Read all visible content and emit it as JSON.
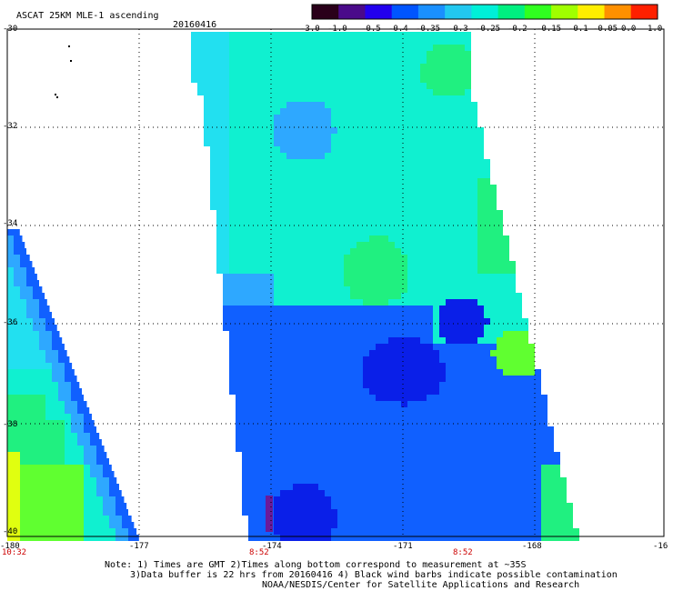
{
  "header": {
    "title": "ASCAT 25KM MLE-1 ascending",
    "date": "20160416"
  },
  "colorbar": {
    "labels": [
      "-3.0",
      "-1.0",
      "-0.5",
      "-0.4",
      "-0.35",
      "-0.3",
      "-0.25",
      "-0.2",
      "-0.15",
      "-0.1",
      "-0.05",
      "0.0",
      "1.0"
    ],
    "colors": [
      "#2a001a",
      "#4a0a8a",
      "#2200ee",
      "#0055ff",
      "#1a90ff",
      "#22c8f0",
      "#00f0d8",
      "#00f080",
      "#30ff20",
      "#a0ff00",
      "#ffee00",
      "#ff9000",
      "#ff2000"
    ]
  },
  "axes": {
    "y_labels": [
      "-30",
      "-32",
      "-34",
      "-36",
      "-38",
      "-40"
    ],
    "x_labels": [
      "-180",
      "-177",
      "-174",
      "-171",
      "-168",
      "-16"
    ],
    "time_labels": [
      "10:32",
      "8:52",
      "8:52"
    ]
  },
  "swath_colors": {
    "deep_blue": "#0a1fe8",
    "blue": "#1060ff",
    "sky": "#2ea8ff",
    "cyan": "#22e0f0",
    "aqua": "#10f0d0",
    "green": "#20f080",
    "lime": "#60ff30",
    "yellow": "#e0ff10",
    "purple": "#6a1a9a"
  },
  "notes": {
    "line1": "Note: 1) Times are GMT 2)Times along bottom correspond to measurement at ~35S",
    "line2": "3)Data buffer is 22 hrs from 20160416 4) Black wind barbs indicate possible contamination",
    "line3": "NOAA/NESDIS/Center for Satellite Applications and Research"
  }
}
